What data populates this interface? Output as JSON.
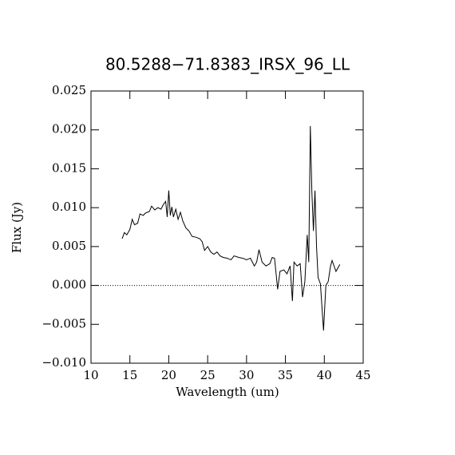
{
  "chart_data": {
    "type": "line",
    "title": "80.5288−71.8383_IRSX_96_LL",
    "xlabel": "Wavelength (um)",
    "ylabel": "Flux (Jy)",
    "color": "#000000",
    "zero_line": true,
    "xlim": [
      10,
      45
    ],
    "xticks": [
      10,
      15,
      20,
      25,
      30,
      35,
      40,
      45
    ],
    "ylim": [
      -0.01,
      0.025
    ],
    "yticks": [
      {
        "value": -0.01,
        "label": "−0.010"
      },
      {
        "value": -0.005,
        "label": "−0.005"
      },
      {
        "value": 0,
        "label": "0.000"
      },
      {
        "value": 0.005,
        "label": "0.005"
      },
      {
        "value": 0.01,
        "label": "0.010"
      },
      {
        "value": 0.015,
        "label": "0.015"
      },
      {
        "value": 0.02,
        "label": "0.020"
      },
      {
        "value": 0.025,
        "label": "0.025"
      }
    ],
    "x": [
      14.0,
      14.3,
      14.6,
      15.0,
      15.3,
      15.6,
      16.0,
      16.3,
      16.7,
      17.0,
      17.5,
      17.8,
      18.2,
      18.6,
      19.0,
      19.3,
      19.6,
      19.8,
      20.0,
      20.2,
      20.4,
      20.6,
      20.9,
      21.2,
      21.5,
      21.8,
      22.2,
      22.6,
      23.0,
      23.5,
      24.0,
      24.3,
      24.6,
      25.0,
      25.4,
      25.8,
      26.2,
      26.6,
      27.0,
      27.5,
      28.0,
      28.4,
      29.0,
      29.5,
      30.0,
      30.5,
      31.0,
      31.3,
      31.6,
      32.0,
      32.5,
      33.0,
      33.3,
      33.6,
      34.0,
      34.3,
      34.8,
      35.2,
      35.6,
      35.9,
      36.1,
      36.5,
      36.9,
      37.2,
      37.5,
      37.8,
      38.0,
      38.2,
      38.4,
      38.6,
      38.8,
      39.0,
      39.2,
      39.5,
      39.9,
      40.2,
      40.5,
      40.8,
      41.0,
      41.5,
      42.0
    ],
    "values": [
      0.006,
      0.0068,
      0.0065,
      0.0072,
      0.0085,
      0.0078,
      0.008,
      0.0092,
      0.009,
      0.0093,
      0.0095,
      0.0102,
      0.0097,
      0.01,
      0.0098,
      0.0104,
      0.0108,
      0.0088,
      0.0122,
      0.009,
      0.0101,
      0.0088,
      0.0098,
      0.0085,
      0.0094,
      0.0083,
      0.0074,
      0.007,
      0.0063,
      0.0062,
      0.006,
      0.0056,
      0.0045,
      0.005,
      0.0043,
      0.004,
      0.0043,
      0.0038,
      0.0036,
      0.0035,
      0.0033,
      0.0038,
      0.0036,
      0.0035,
      0.0033,
      0.0035,
      0.0025,
      0.003,
      0.0046,
      0.003,
      0.0025,
      0.0028,
      0.0036,
      0.0035,
      -0.0005,
      0.0018,
      0.002,
      0.0015,
      0.0025,
      -0.002,
      0.003,
      0.0025,
      0.0028,
      -0.0015,
      0.0005,
      0.0065,
      0.003,
      0.0205,
      0.012,
      0.007,
      0.0122,
      0.005,
      0.001,
      0.0002,
      -0.0058,
      0.0,
      0.0005,
      0.0025,
      0.0032,
      0.0018,
      0.0027
    ]
  }
}
